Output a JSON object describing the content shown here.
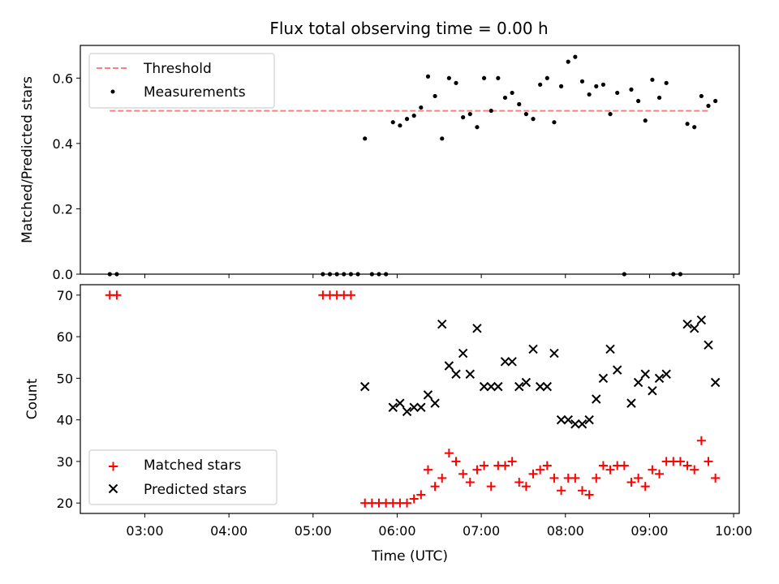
{
  "figure": {
    "title": "Flux total observing time = 0.00 h"
  },
  "chart_data": [
    {
      "type": "scatter",
      "ylabel": "Matched/Predicted stars",
      "xlim": [
        "02:14",
        "10:04"
      ],
      "ylim": [
        0,
        0.7
      ],
      "yticks": [
        0.0,
        0.2,
        0.4,
        0.6
      ],
      "ytick_labels": [
        "0.0",
        "0.2",
        "0.4",
        "0.6"
      ],
      "legend": {
        "position": "top-left",
        "entries": [
          {
            "label": "Threshold",
            "marker": "dashed-line",
            "color": "#ff7f7f"
          },
          {
            "label": "Measurements",
            "marker": "dot",
            "color": "#000000"
          }
        ]
      },
      "threshold": {
        "name": "Threshold",
        "value": 0.5,
        "x_start": "02:35",
        "x_end": "09:42",
        "color": "#ff7f7f"
      },
      "series": [
        {
          "name": "Measurements",
          "color": "#000000",
          "points": [
            [
              "02:35",
              0.0
            ],
            [
              "02:40",
              0.0
            ],
            [
              "05:07",
              0.0
            ],
            [
              "05:12",
              0.0
            ],
            [
              "05:17",
              0.0
            ],
            [
              "05:22",
              0.0
            ],
            [
              "05:27",
              0.0
            ],
            [
              "05:32",
              0.0
            ],
            [
              "05:37",
              0.415
            ],
            [
              "05:42",
              0.0
            ],
            [
              "05:47",
              0.0
            ],
            [
              "05:52",
              0.0
            ],
            [
              "05:57",
              0.465
            ],
            [
              "06:02",
              0.455
            ],
            [
              "06:07",
              0.475
            ],
            [
              "06:12",
              0.485
            ],
            [
              "06:17",
              0.51
            ],
            [
              "06:22",
              0.605
            ],
            [
              "06:27",
              0.545
            ],
            [
              "06:32",
              0.415
            ],
            [
              "06:37",
              0.6
            ],
            [
              "06:42",
              0.585
            ],
            [
              "06:47",
              0.48
            ],
            [
              "06:52",
              0.49
            ],
            [
              "06:57",
              0.45
            ],
            [
              "07:02",
              0.6
            ],
            [
              "07:07",
              0.5
            ],
            [
              "07:12",
              0.6
            ],
            [
              "07:17",
              0.54
            ],
            [
              "07:22",
              0.555
            ],
            [
              "07:27",
              0.52
            ],
            [
              "07:32",
              0.49
            ],
            [
              "07:37",
              0.475
            ],
            [
              "07:42",
              0.58
            ],
            [
              "07:47",
              0.6
            ],
            [
              "07:52",
              0.465
            ],
            [
              "07:57",
              0.575
            ],
            [
              "08:02",
              0.65
            ],
            [
              "08:07",
              0.665
            ],
            [
              "08:12",
              0.59
            ],
            [
              "08:17",
              0.55
            ],
            [
              "08:22",
              0.575
            ],
            [
              "08:27",
              0.58
            ],
            [
              "08:32",
              0.49
            ],
            [
              "08:37",
              0.555
            ],
            [
              "08:42",
              0.0
            ],
            [
              "08:47",
              0.565
            ],
            [
              "08:52",
              0.53
            ],
            [
              "08:57",
              0.47
            ],
            [
              "09:02",
              0.595
            ],
            [
              "09:07",
              0.54
            ],
            [
              "09:12",
              0.585
            ],
            [
              "09:17",
              0.0
            ],
            [
              "09:22",
              0.0
            ],
            [
              "09:27",
              0.46
            ],
            [
              "09:32",
              0.45
            ],
            [
              "09:37",
              0.545
            ],
            [
              "09:42",
              0.515
            ],
            [
              "09:47",
              0.53
            ]
          ]
        }
      ]
    },
    {
      "type": "scatter",
      "xlabel": "Time (UTC)",
      "ylabel": "Count",
      "xlim": [
        "02:14",
        "10:04"
      ],
      "ylim": [
        17.5,
        72.5
      ],
      "xticks": [
        "03:00",
        "04:00",
        "05:00",
        "06:00",
        "07:00",
        "08:00",
        "09:00",
        "10:00"
      ],
      "yticks": [
        20,
        30,
        40,
        50,
        60,
        70
      ],
      "ytick_labels": [
        "20",
        "30",
        "40",
        "50",
        "60",
        "70"
      ],
      "legend": {
        "position": "bottom-left",
        "entries": [
          {
            "label": "Matched stars",
            "marker": "plus",
            "color": "#ff0000"
          },
          {
            "label": "Predicted stars",
            "marker": "x",
            "color": "#000000"
          }
        ]
      },
      "series": [
        {
          "name": "Matched stars",
          "marker": "plus",
          "color": "#ff0000",
          "points": [
            [
              "02:35",
              70
            ],
            [
              "02:40",
              70
            ],
            [
              "05:07",
              70
            ],
            [
              "05:12",
              70
            ],
            [
              "05:17",
              70
            ],
            [
              "05:22",
              70
            ],
            [
              "05:27",
              70
            ],
            [
              "05:37",
              20
            ],
            [
              "05:42",
              20
            ],
            [
              "05:47",
              20
            ],
            [
              "05:52",
              20
            ],
            [
              "05:57",
              20
            ],
            [
              "06:02",
              20
            ],
            [
              "06:07",
              20
            ],
            [
              "06:12",
              21
            ],
            [
              "06:17",
              22
            ],
            [
              "06:22",
              28
            ],
            [
              "06:27",
              24
            ],
            [
              "06:32",
              26
            ],
            [
              "06:37",
              32
            ],
            [
              "06:42",
              30
            ],
            [
              "06:47",
              27
            ],
            [
              "06:52",
              25
            ],
            [
              "06:57",
              28
            ],
            [
              "07:02",
              29
            ],
            [
              "07:07",
              24
            ],
            [
              "07:12",
              29
            ],
            [
              "07:17",
              29
            ],
            [
              "07:22",
              30
            ],
            [
              "07:27",
              25
            ],
            [
              "07:32",
              24
            ],
            [
              "07:37",
              27
            ],
            [
              "07:42",
              28
            ],
            [
              "07:47",
              29
            ],
            [
              "07:52",
              26
            ],
            [
              "07:57",
              23
            ],
            [
              "08:02",
              26
            ],
            [
              "08:07",
              26
            ],
            [
              "08:12",
              23
            ],
            [
              "08:17",
              22
            ],
            [
              "08:22",
              26
            ],
            [
              "08:27",
              29
            ],
            [
              "08:32",
              28
            ],
            [
              "08:37",
              29
            ],
            [
              "08:42",
              29
            ],
            [
              "08:47",
              25
            ],
            [
              "08:52",
              26
            ],
            [
              "08:57",
              24
            ],
            [
              "09:02",
              28
            ],
            [
              "09:07",
              27
            ],
            [
              "09:12",
              30
            ],
            [
              "09:17",
              30
            ],
            [
              "09:22",
              30
            ],
            [
              "09:27",
              29
            ],
            [
              "09:32",
              28
            ],
            [
              "09:37",
              35
            ],
            [
              "09:42",
              30
            ],
            [
              "09:47",
              26
            ]
          ]
        },
        {
          "name": "Predicted stars",
          "marker": "x",
          "color": "#000000",
          "points": [
            [
              "05:37",
              48
            ],
            [
              "05:57",
              43
            ],
            [
              "06:02",
              44
            ],
            [
              "06:07",
              42
            ],
            [
              "06:12",
              43
            ],
            [
              "06:17",
              43
            ],
            [
              "06:22",
              46
            ],
            [
              "06:27",
              44
            ],
            [
              "06:32",
              63
            ],
            [
              "06:37",
              53
            ],
            [
              "06:42",
              51
            ],
            [
              "06:47",
              56
            ],
            [
              "06:52",
              51
            ],
            [
              "06:57",
              62
            ],
            [
              "07:02",
              48
            ],
            [
              "07:07",
              48
            ],
            [
              "07:12",
              48
            ],
            [
              "07:17",
              54
            ],
            [
              "07:22",
              54
            ],
            [
              "07:27",
              48
            ],
            [
              "07:32",
              49
            ],
            [
              "07:37",
              57
            ],
            [
              "07:42",
              48
            ],
            [
              "07:47",
              48
            ],
            [
              "07:52",
              56
            ],
            [
              "07:57",
              40
            ],
            [
              "08:02",
              40
            ],
            [
              "08:07",
              39
            ],
            [
              "08:12",
              39
            ],
            [
              "08:17",
              40
            ],
            [
              "08:22",
              45
            ],
            [
              "08:27",
              50
            ],
            [
              "08:32",
              57
            ],
            [
              "08:37",
              52
            ],
            [
              "08:47",
              44
            ],
            [
              "08:52",
              49
            ],
            [
              "08:57",
              51
            ],
            [
              "09:02",
              47
            ],
            [
              "09:07",
              50
            ],
            [
              "09:12",
              51
            ],
            [
              "09:27",
              63
            ],
            [
              "09:32",
              62
            ],
            [
              "09:37",
              64
            ],
            [
              "09:42",
              58
            ],
            [
              "09:47",
              49
            ]
          ]
        }
      ]
    }
  ]
}
